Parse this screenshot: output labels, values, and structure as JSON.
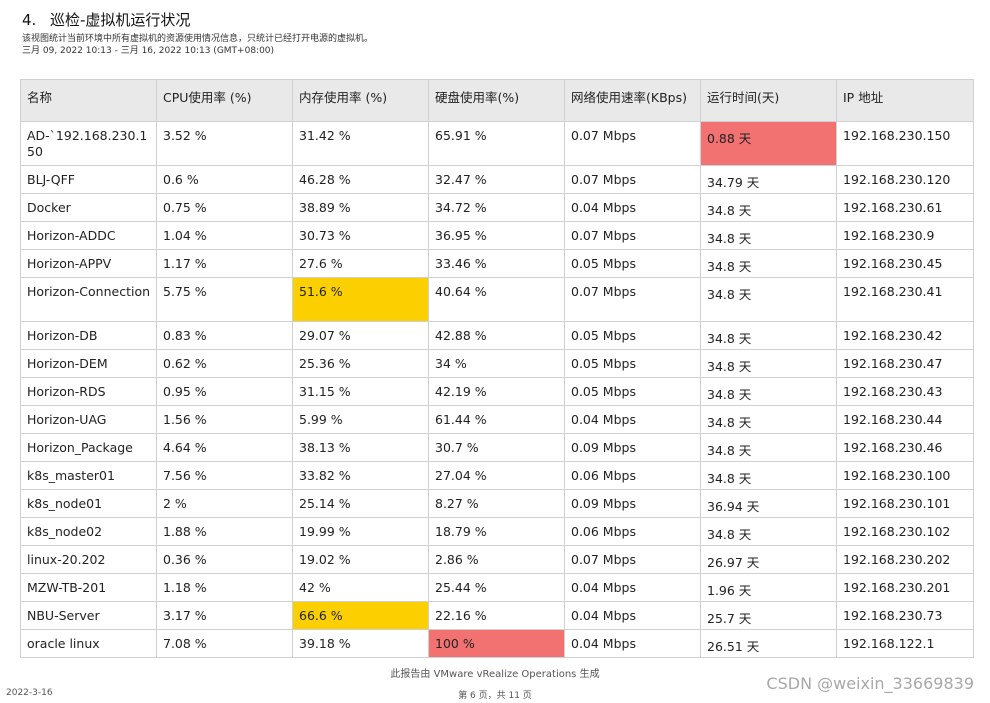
{
  "section": {
    "number": "4.",
    "title": "巡检-虚拟机运行状况",
    "description": "该视图统计当前环境中所有虚拟机的资源使用情况信息，只统计已经打开电源的虚拟机。",
    "date_range": "三月 09, 2022 10:13 - 三月 16, 2022 10:13 (GMT+08:00)"
  },
  "table": {
    "headers": [
      "名称",
      "CPU使用率 (%)",
      "内存使用率 (%)",
      "硬盘使用率(%)",
      "网络使用速率(KBps)",
      "运行时间(天)",
      "IP 地址"
    ],
    "rows": [
      [
        "AD-`192.168.230.150",
        "3.52 %",
        "31.42 %",
        "65.91 %",
        "0.07 Mbps",
        "0.88 天",
        "192.168.230.150"
      ],
      [
        "BLJ-QFF",
        "0.6 %",
        "46.28 %",
        "32.47 %",
        "0.07 Mbps",
        "34.79 天",
        "192.168.230.120"
      ],
      [
        "Docker",
        "0.75 %",
        "38.89 %",
        "34.72 %",
        "0.04 Mbps",
        "34.8 天",
        "192.168.230.61"
      ],
      [
        "Horizon-ADDC",
        "1.04 %",
        "30.73 %",
        "36.95 %",
        "0.07 Mbps",
        "34.8 天",
        "192.168.230.9"
      ],
      [
        "Horizon-APPV",
        "1.17 %",
        "27.6 %",
        "33.46 %",
        "0.05 Mbps",
        "34.8 天",
        "192.168.230.45"
      ],
      [
        "Horizon-Connection",
        "5.75 %",
        "51.6 %",
        "40.64 %",
        "0.07 Mbps",
        "34.8 天",
        "192.168.230.41"
      ],
      [
        "Horizon-DB",
        "0.83 %",
        "29.07 %",
        "42.88 %",
        "0.05 Mbps",
        "34.8 天",
        "192.168.230.42"
      ],
      [
        "Horizon-DEM",
        "0.62 %",
        "25.36 %",
        "34 %",
        "0.05 Mbps",
        "34.8 天",
        "192.168.230.47"
      ],
      [
        "Horizon-RDS",
        "0.95 %",
        "31.15 %",
        "42.19 %",
        "0.05 Mbps",
        "34.8 天",
        "192.168.230.43"
      ],
      [
        "Horizon-UAG",
        "1.56 %",
        "5.99 %",
        "61.44 %",
        "0.04 Mbps",
        "34.8 天",
        "192.168.230.44"
      ],
      [
        "Horizon_Package",
        "4.64 %",
        "38.13 %",
        "30.7 %",
        "0.09 Mbps",
        "34.8 天",
        "192.168.230.46"
      ],
      [
        "k8s_master01",
        "7.56 %",
        "33.82 %",
        "27.04 %",
        "0.06 Mbps",
        "34.8 天",
        "192.168.230.100"
      ],
      [
        "k8s_node01",
        "2 %",
        "25.14 %",
        "8.27 %",
        "0.09 Mbps",
        "36.94 天",
        "192.168.230.101"
      ],
      [
        "k8s_node02",
        "1.88 %",
        "19.99 %",
        "18.79 %",
        "0.06 Mbps",
        "34.8 天",
        "192.168.230.102"
      ],
      [
        "linux-20.202",
        "0.36 %",
        "19.02 %",
        "2.86 %",
        "0.07 Mbps",
        "26.97 天",
        "192.168.230.202"
      ],
      [
        "MZW-TB-201",
        "1.18 %",
        "42 %",
        "25.44 %",
        "0.04 Mbps",
        "1.96 天",
        "192.168.230.201"
      ],
      [
        "NBU-Server",
        "3.17 %",
        "66.6 %",
        "22.16 %",
        "0.04 Mbps",
        "25.7 天",
        "192.168.230.73"
      ],
      [
        "oracle linux",
        "7.08 %",
        "39.18 %",
        "100 %",
        "0.04 Mbps",
        "26.51 天",
        "192.168.122.1"
      ]
    ],
    "highlight_colors": {
      "critical": "#f27171",
      "warning": "#fcd000"
    }
  },
  "footer": {
    "generated_by": "此报告由 VMware vRealize Operations 生成",
    "date": "2022-3-16",
    "page": "第 6 页，共 11 页",
    "watermark": "CSDN @weixin_33669839"
  }
}
